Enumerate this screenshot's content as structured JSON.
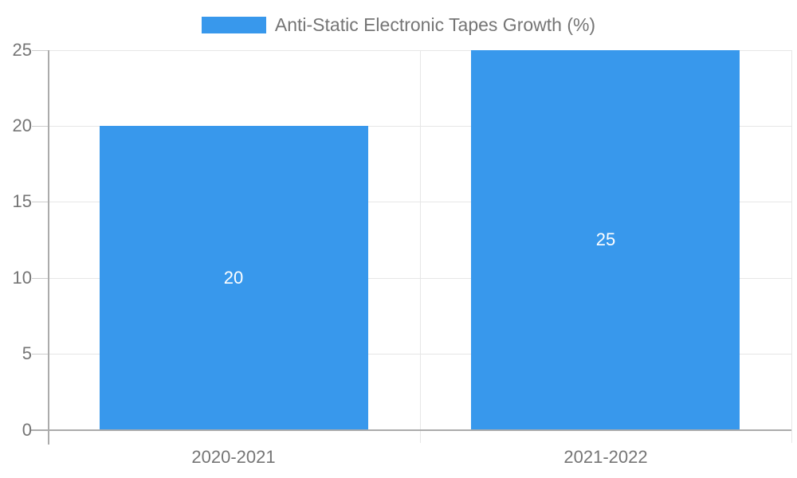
{
  "chart_data": {
    "type": "bar",
    "title": "Anti-Static Electronic Tapes Growth (%)",
    "categories": [
      "2020-2021",
      "2021-2022"
    ],
    "series": [
      {
        "name": "Anti-Static Electronic Tapes Growth (%)",
        "values": [
          20,
          25
        ]
      }
    ],
    "data_labels": [
      "20",
      "25"
    ],
    "xlabel": "",
    "ylabel": "",
    "ylim": [
      0,
      25
    ],
    "yticks": [
      0,
      5,
      10,
      15,
      20,
      25
    ],
    "grid": true,
    "legend_position": "top-center",
    "colors": {
      "bar": "#3898EC",
      "gridline": "#E6E6E6",
      "axis": "#ABABAB",
      "tick": "#CCCCCC",
      "axis_label": "#757575",
      "legend_text": "#757575",
      "data_label": "#FFFFFF",
      "background": "#FFFFFF"
    }
  },
  "legend": {
    "label": "Anti-Static Electronic Tapes Growth (%)"
  }
}
